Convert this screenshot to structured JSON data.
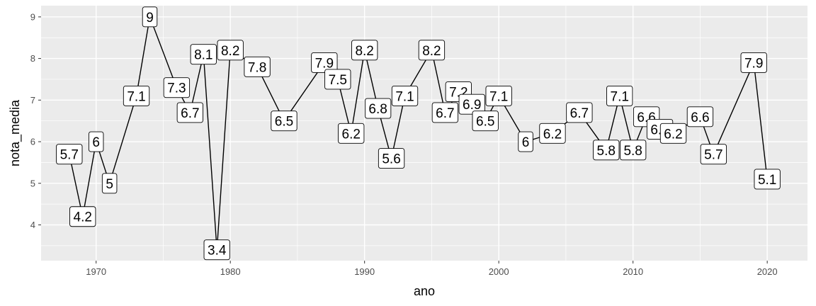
{
  "chart_data": {
    "type": "line",
    "title": "",
    "xlabel": "ano",
    "ylabel": "nota_media",
    "xlim": [
      1965.9,
      2023.0
    ],
    "ylim": [
      3.14,
      9.27
    ],
    "x_ticks": [
      1970,
      1980,
      1990,
      2000,
      2010,
      2020
    ],
    "x_tick_labels": [
      "1970",
      "1980",
      "1990",
      "2000",
      "2010",
      "2020"
    ],
    "y_ticks": [
      4,
      5,
      6,
      7,
      8,
      9
    ],
    "y_tick_labels": [
      "4",
      "5",
      "6",
      "7",
      "8",
      "9"
    ],
    "grid": true,
    "legend": "none",
    "series": [
      {
        "points": [
          {
            "x": 1968,
            "y": 5.7,
            "label": "5.7"
          },
          {
            "x": 1969,
            "y": 4.2,
            "label": "4.2"
          },
          {
            "x": 1970,
            "y": 6.0,
            "label": "6"
          },
          {
            "x": 1971,
            "y": 5.0,
            "label": "5"
          },
          {
            "x": 1973,
            "y": 7.1,
            "label": "7.1"
          },
          {
            "x": 1974,
            "y": 9.0,
            "label": "9"
          },
          {
            "x": 1976,
            "y": 7.3,
            "label": "7.3"
          },
          {
            "x": 1977,
            "y": 6.7,
            "label": "6.7"
          },
          {
            "x": 1978,
            "y": 8.1,
            "label": "8.1"
          },
          {
            "x": 1979,
            "y": 3.4,
            "label": "3.4"
          },
          {
            "x": 1980,
            "y": 8.2,
            "label": "8.2"
          },
          {
            "x": 1982,
            "y": 7.8,
            "label": "7.8"
          },
          {
            "x": 1984,
            "y": 6.5,
            "label": "6.5"
          },
          {
            "x": 1987,
            "y": 7.9,
            "label": "7.9"
          },
          {
            "x": 1988,
            "y": 7.5,
            "label": "7.5"
          },
          {
            "x": 1989,
            "y": 6.2,
            "label": "6.2"
          },
          {
            "x": 1990,
            "y": 8.2,
            "label": "8.2"
          },
          {
            "x": 1991,
            "y": 6.8,
            "label": "6.8"
          },
          {
            "x": 1992,
            "y": 5.6,
            "label": "5.6"
          },
          {
            "x": 1993,
            "y": 7.1,
            "label": "7.1"
          },
          {
            "x": 1995,
            "y": 8.2,
            "label": "8.2"
          },
          {
            "x": 1996,
            "y": 6.7,
            "label": "6.7"
          },
          {
            "x": 1997,
            "y": 7.2,
            "label": "7.2"
          },
          {
            "x": 1998,
            "y": 6.9,
            "label": "6.9"
          },
          {
            "x": 1999,
            "y": 6.5,
            "label": "6.5"
          },
          {
            "x": 2000,
            "y": 7.1,
            "label": "7.1"
          },
          {
            "x": 2002,
            "y": 6.0,
            "label": "6"
          },
          {
            "x": 2004,
            "y": 6.2,
            "label": "6.2"
          },
          {
            "x": 2006,
            "y": 6.7,
            "label": "6.7"
          },
          {
            "x": 2008,
            "y": 5.8,
            "label": "5.8"
          },
          {
            "x": 2009,
            "y": 7.1,
            "label": "7.1"
          },
          {
            "x": 2010,
            "y": 5.8,
            "label": "5.8"
          },
          {
            "x": 2011,
            "y": 6.6,
            "label": "6.6"
          },
          {
            "x": 2012,
            "y": 6.3,
            "label": "6.3"
          },
          {
            "x": 2013,
            "y": 6.2,
            "label": "6.2"
          },
          {
            "x": 2015,
            "y": 6.6,
            "label": "6.6"
          },
          {
            "x": 2016,
            "y": 5.7,
            "label": "5.7"
          },
          {
            "x": 2019,
            "y": 7.9,
            "label": "7.9"
          },
          {
            "x": 2020,
            "y": 5.1,
            "label": "5.1"
          }
        ]
      }
    ],
    "colors": {
      "panel_background": "#ebebeb",
      "grid_major": "#ffffff",
      "line": "#000000",
      "label_fill": "#ffffff",
      "label_border": "#000000",
      "tick_text": "#4d4d4d",
      "tick_mark": "#333333"
    }
  }
}
